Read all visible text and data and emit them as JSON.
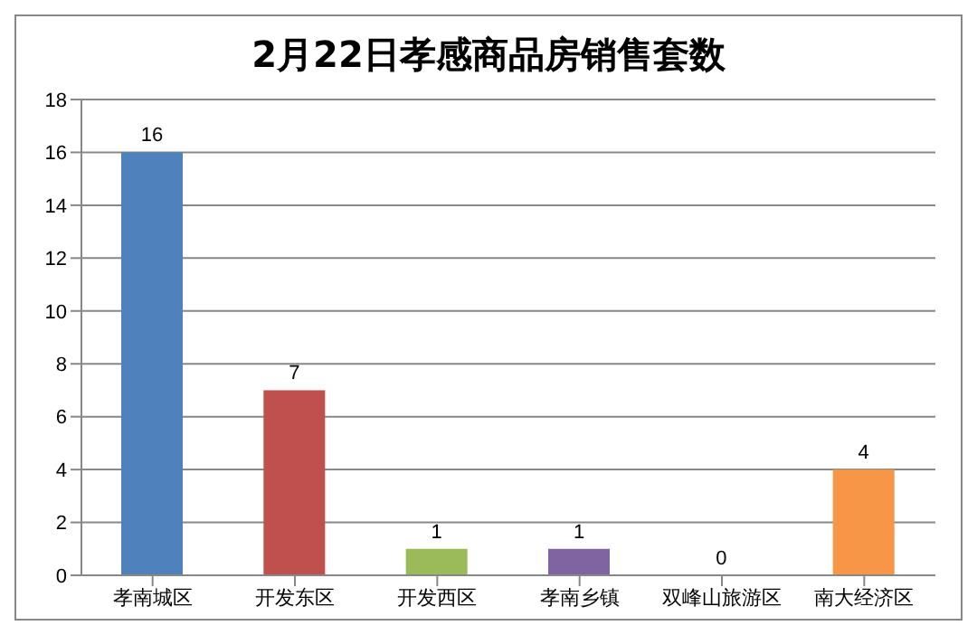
{
  "chart_data": {
    "type": "bar",
    "title": "2月22日孝感商品房销售套数",
    "categories": [
      "孝南城区",
      "开发东区",
      "开发西区",
      "孝南乡镇",
      "双峰山旅游区",
      "南大经济区"
    ],
    "values": [
      16,
      7,
      1,
      1,
      0,
      4
    ],
    "colors": [
      "#4f81bd",
      "#c0504d",
      "#9bbb59",
      "#8064a2",
      "#4bacc6",
      "#f79646"
    ],
    "ylim": [
      0,
      18
    ],
    "yticks": [
      0,
      2,
      4,
      6,
      8,
      10,
      12,
      14,
      16,
      18
    ],
    "grid": "y",
    "data_labels": true
  }
}
